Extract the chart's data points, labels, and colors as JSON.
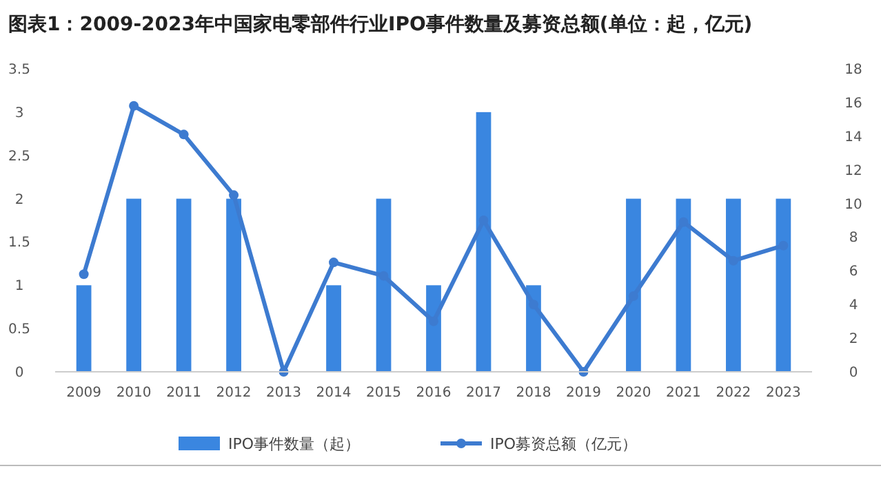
{
  "chart_data": {
    "type": "bar",
    "title": "图表1：2009-2023年中国家电零部件行业IPO事件数量及募资总额(单位：起，亿元)",
    "categories": [
      "2009",
      "2010",
      "2011",
      "2012",
      "2013",
      "2014",
      "2015",
      "2016",
      "2017",
      "2018",
      "2019",
      "2020",
      "2021",
      "2022",
      "2023"
    ],
    "series": [
      {
        "name": "IPO事件数量（起）",
        "color": "#3a86e0",
        "values": [
          1,
          2,
          2,
          2,
          0,
          1,
          2,
          1,
          3,
          1,
          0,
          2,
          2,
          2,
          2
        ]
      },
      {
        "name": "IPO募资总额（亿元）",
        "type": "line",
        "axis": "y2",
        "color": "#3d7bd0",
        "marker": "circle",
        "values": [
          5.8,
          15.8,
          14.1,
          10.5,
          0,
          6.5,
          5.7,
          3.0,
          9.0,
          4.0,
          0,
          4.5,
          8.9,
          6.6,
          7.5
        ]
      }
    ],
    "ylim": [
      0,
      3.5
    ],
    "yticks": [
      0,
      0.5,
      1,
      1.5,
      2,
      2.5,
      3,
      3.5
    ],
    "y2lim": [
      0,
      18
    ],
    "y2ticks": [
      0,
      2,
      4,
      6,
      8,
      10,
      12,
      14,
      16,
      18
    ],
    "grid": false,
    "legend": "bottom"
  }
}
